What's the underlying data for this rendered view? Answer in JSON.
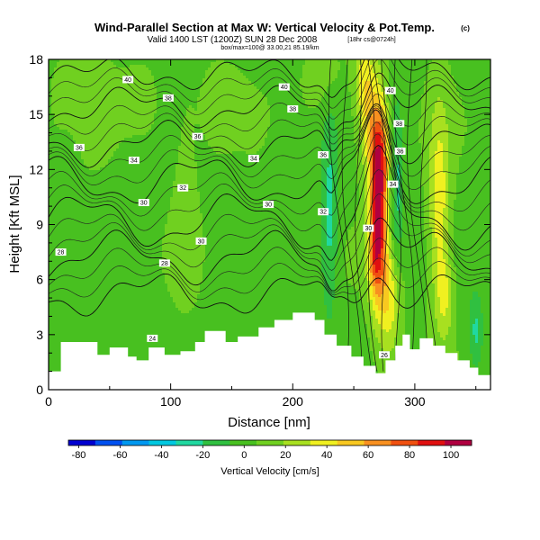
{
  "chart_data": {
    "type": "heatmap",
    "title": "Wind-Parallel Section at Max W: Vertical Velocity & Pot.Temp.",
    "title_mark": "(c)",
    "subtitle_main": "Valid 1400 LST (1200Z) SUN 28 Dec 2008",
    "subtitle_tag": "[18hr cs@0724h]",
    "subtitle_small": "box/max=100@ 33.00,21 85.19/km",
    "xlabel": "Distance [nm]",
    "ylabel": "Height [Kft MSL]",
    "xlim": [
      0,
      362
    ],
    "ylim": [
      0,
      18
    ],
    "x_ticks": [
      "0",
      "100",
      "200",
      "300"
    ],
    "x_tick_values": [
      0,
      100,
      200,
      300
    ],
    "y_ticks": [
      "0",
      "3",
      "6",
      "9",
      "12",
      "15",
      "18"
    ],
    "y_tick_values": [
      0,
      3,
      6,
      9,
      12,
      15,
      18
    ],
    "colorbar": {
      "label": "Vertical Velocity [cm/s]",
      "ticks": [
        "-80",
        "-60",
        "-40",
        "-20",
        "0",
        "20",
        "40",
        "60",
        "80",
        "100"
      ],
      "tick_values": [
        -80,
        -60,
        -40,
        -20,
        0,
        20,
        40,
        60,
        80,
        100
      ],
      "range": [
        -85,
        110
      ],
      "colors": [
        "#0000d0",
        "#0050f0",
        "#0098f0",
        "#00c8e0",
        "#20d8a0",
        "#30c040",
        "#48c020",
        "#70d020",
        "#a8e020",
        "#f0f020",
        "#f8c820",
        "#f89020",
        "#f05010",
        "#e01010",
        "#b00040"
      ]
    },
    "terrain": [
      [
        0,
        1.0
      ],
      [
        10,
        1.0
      ],
      [
        10,
        2.6
      ],
      [
        40,
        2.6
      ],
      [
        40,
        1.9
      ],
      [
        50,
        1.9
      ],
      [
        50,
        2.3
      ],
      [
        65,
        2.3
      ],
      [
        65,
        1.8
      ],
      [
        72,
        1.8
      ],
      [
        72,
        1.6
      ],
      [
        82,
        1.6
      ],
      [
        82,
        2.3
      ],
      [
        95,
        2.3
      ],
      [
        95,
        1.9
      ],
      [
        108,
        1.9
      ],
      [
        108,
        2.1
      ],
      [
        120,
        2.1
      ],
      [
        120,
        2.6
      ],
      [
        128,
        2.6
      ],
      [
        128,
        3.2
      ],
      [
        145,
        3.2
      ],
      [
        145,
        2.6
      ],
      [
        155,
        2.6
      ],
      [
        155,
        2.9
      ],
      [
        172,
        2.9
      ],
      [
        172,
        3.4
      ],
      [
        185,
        3.4
      ],
      [
        185,
        3.8
      ],
      [
        200,
        3.8
      ],
      [
        200,
        4.2
      ],
      [
        218,
        4.2
      ],
      [
        218,
        3.8
      ],
      [
        226,
        3.8
      ],
      [
        226,
        3.0
      ],
      [
        236,
        3.0
      ],
      [
        236,
        2.4
      ],
      [
        248,
        2.4
      ],
      [
        248,
        1.8
      ],
      [
        258,
        1.8
      ],
      [
        258,
        1.3
      ],
      [
        268,
        1.3
      ],
      [
        268,
        0.9
      ],
      [
        276,
        0.9
      ],
      [
        276,
        1.6
      ],
      [
        284,
        1.6
      ],
      [
        284,
        2.4
      ],
      [
        290,
        2.4
      ],
      [
        290,
        3.0
      ],
      [
        296,
        3.0
      ],
      [
        296,
        2.2
      ],
      [
        304,
        2.2
      ],
      [
        304,
        2.8
      ],
      [
        315,
        2.8
      ],
      [
        315,
        2.4
      ],
      [
        325,
        2.4
      ],
      [
        325,
        2.0
      ],
      [
        335,
        2.0
      ],
      [
        335,
        1.6
      ],
      [
        345,
        1.6
      ],
      [
        345,
        1.2
      ],
      [
        352,
        1.2
      ],
      [
        352,
        0.8
      ],
      [
        362,
        0.8
      ]
    ],
    "w_field": [
      {
        "x": 270,
        "y": 10.0,
        "sx": 5,
        "sy": 3.6,
        "amp": 95
      },
      {
        "x": 266,
        "y": 7.2,
        "sx": 4,
        "sy": 1.5,
        "amp": 25
      },
      {
        "x": 274,
        "y": 13.0,
        "sx": 6,
        "sy": 2.0,
        "amp": 30
      },
      {
        "x": 262,
        "y": 14.5,
        "sx": 6,
        "sy": 2.2,
        "amp": 28
      },
      {
        "x": 258,
        "y": 17.0,
        "sx": 6,
        "sy": 1.8,
        "amp": 28
      },
      {
        "x": 280,
        "y": 5.0,
        "sx": 6,
        "sy": 2.2,
        "amp": 38
      },
      {
        "x": 320,
        "y": 10.0,
        "sx": 6,
        "sy": 4.0,
        "amp": 38
      },
      {
        "x": 325,
        "y": 5.0,
        "sx": 5,
        "sy": 1.6,
        "amp": 24
      },
      {
        "x": 230,
        "y": 9.5,
        "sx": 5,
        "sy": 4.0,
        "amp": -28
      },
      {
        "x": 285,
        "y": 11.0,
        "sx": 4,
        "sy": 3.5,
        "amp": -30
      },
      {
        "x": 350,
        "y": 3.2,
        "sx": 4,
        "sy": 1.5,
        "amp": -26
      },
      {
        "x": 28,
        "y": 16.0,
        "sx": 15,
        "sy": 2.0,
        "amp": 13
      },
      {
        "x": 75,
        "y": 15.5,
        "sx": 12,
        "sy": 1.5,
        "amp": 10
      },
      {
        "x": 140,
        "y": 15.2,
        "sx": 14,
        "sy": 1.8,
        "amp": 10
      },
      {
        "x": 225,
        "y": 17.0,
        "sx": 10,
        "sy": 1.2,
        "amp": 12
      },
      {
        "x": 112,
        "y": 11.0,
        "sx": 7,
        "sy": 4.0,
        "amp": 9
      },
      {
        "x": 18,
        "y": 12.0,
        "sx": 7,
        "sy": 3.5,
        "amp": -7
      },
      {
        "x": 70,
        "y": 8.0,
        "sx": 9,
        "sy": 4.0,
        "amp": -7
      },
      {
        "x": 150,
        "y": 7.5,
        "sx": 9,
        "sy": 3.0,
        "amp": -6
      },
      {
        "x": 190,
        "y": 9.5,
        "sx": 8,
        "sy": 4.0,
        "amp": -5
      }
    ],
    "theta_contours": [
      {
        "label": "28",
        "base": 5.2,
        "amp": 0.9,
        "ridge_amp": 1.5
      },
      {
        "label": "30",
        "base": 7.2,
        "amp": 1.1,
        "ridge_amp": 2.2
      },
      {
        "label": "32",
        "base": 9.2,
        "amp": 1.2,
        "ridge_amp": 2.8
      },
      {
        "label": "34",
        "base": 11.4,
        "amp": 1.1,
        "ridge_amp": 3.0
      },
      {
        "label": "36",
        "base": 13.4,
        "amp": 0.9,
        "ridge_amp": 2.6
      },
      {
        "label": "38",
        "base": 15.4,
        "amp": 0.8,
        "ridge_amp": 2.2
      },
      {
        "label": "40",
        "base": 17.2,
        "amp": 0.6,
        "ridge_amp": 1.8
      }
    ]
  },
  "contour_label_spots": [
    {
      "x": 10,
      "y": 7.5,
      "label": "28"
    },
    {
      "x": 95,
      "y": 6.9,
      "label": "28"
    },
    {
      "x": 125,
      "y": 8.1,
      "label": "30"
    },
    {
      "x": 78,
      "y": 10.2,
      "label": "30"
    },
    {
      "x": 180,
      "y": 10.1,
      "label": "30"
    },
    {
      "x": 110,
      "y": 11.0,
      "label": "32"
    },
    {
      "x": 70,
      "y": 12.5,
      "label": "34"
    },
    {
      "x": 168,
      "y": 12.6,
      "label": "34"
    },
    {
      "x": 25,
      "y": 13.2,
      "label": "36"
    },
    {
      "x": 122,
      "y": 13.8,
      "label": "36"
    },
    {
      "x": 98,
      "y": 15.9,
      "label": "38"
    },
    {
      "x": 200,
      "y": 15.3,
      "label": "38"
    },
    {
      "x": 65,
      "y": 16.9,
      "label": "40"
    },
    {
      "x": 193,
      "y": 16.5,
      "label": "40"
    },
    {
      "x": 225,
      "y": 12.8,
      "label": "36"
    },
    {
      "x": 225,
      "y": 9.7,
      "label": "32"
    },
    {
      "x": 262,
      "y": 8.8,
      "label": "30"
    },
    {
      "x": 282,
      "y": 11.2,
      "label": "34"
    },
    {
      "x": 288,
      "y": 13.0,
      "label": "36"
    },
    {
      "x": 287,
      "y": 14.5,
      "label": "38"
    },
    {
      "x": 280,
      "y": 16.3,
      "label": "40"
    },
    {
      "x": 275,
      "y": 1.9,
      "label": "26"
    },
    {
      "x": 85,
      "y": 2.8,
      "label": "24"
    }
  ]
}
